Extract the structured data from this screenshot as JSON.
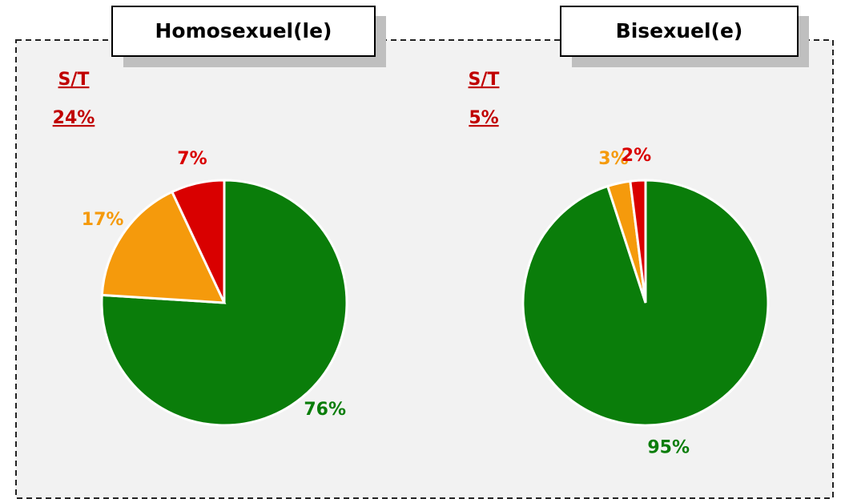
{
  "chart_data": [
    {
      "type": "pie",
      "title": "Homosexuel(le)",
      "subtotal_label": "S/T",
      "subtotal": "24%",
      "values": [
        76,
        17,
        7
      ],
      "value_labels": [
        "76%",
        "17%",
        "7%"
      ],
      "colors": [
        "#0a7d0a",
        "#f59a0c",
        "#d90000"
      ]
    },
    {
      "type": "pie",
      "title": "Bisexuel(e)",
      "subtotal_label": "S/T",
      "subtotal": "5%",
      "values": [
        95,
        3,
        2
      ],
      "value_labels": [
        "95%",
        "3%",
        "2%"
      ],
      "colors": [
        "#0a7d0a",
        "#f59a0c",
        "#d90000"
      ]
    }
  ]
}
